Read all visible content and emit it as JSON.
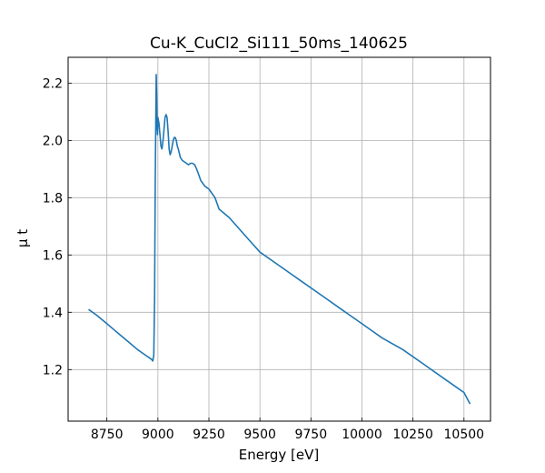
{
  "chart_data": {
    "type": "line",
    "title": "Cu-K_CuCl2_Si111_50ms_140625",
    "xlabel": "Energy [eV]",
    "ylabel": "μ t",
    "xlim": [
      8560,
      10630
    ],
    "ylim": [
      1.02,
      2.29
    ],
    "xticks": [
      8750,
      9000,
      9250,
      9500,
      9750,
      10000,
      10250,
      10500
    ],
    "yticks": [
      1.2,
      1.4,
      1.6,
      1.8,
      2.0,
      2.2
    ],
    "grid": true,
    "line_color": "#1f77b4",
    "series": [
      {
        "x": [
          8660,
          8700,
          8750,
          8800,
          8850,
          8900,
          8940,
          8960,
          8970,
          8975,
          8980,
          8984,
          8987,
          8990,
          8992,
          8994,
          8996,
          8998,
          9000,
          9005,
          9010,
          9015,
          9020,
          9025,
          9030,
          9035,
          9040,
          9045,
          9050,
          9055,
          9060,
          9065,
          9070,
          9075,
          9080,
          9085,
          9090,
          9095,
          9100,
          9110,
          9120,
          9130,
          9140,
          9150,
          9160,
          9170,
          9180,
          9190,
          9200,
          9210,
          9220,
          9230,
          9250,
          9280,
          9300,
          9350,
          9400,
          9450,
          9500,
          9600,
          9700,
          9800,
          9900,
          10000,
          10100,
          10200,
          10300,
          10400,
          10500,
          10530
        ],
        "y": [
          1.41,
          1.39,
          1.36,
          1.33,
          1.3,
          1.27,
          1.25,
          1.24,
          1.235,
          1.23,
          1.25,
          1.45,
          1.85,
          2.1,
          2.23,
          2.15,
          2.05,
          2.02,
          2.08,
          2.06,
          2.02,
          1.98,
          1.97,
          2.0,
          2.04,
          2.08,
          2.09,
          2.08,
          2.03,
          1.97,
          1.95,
          1.96,
          1.98,
          2.0,
          2.01,
          2.01,
          2.0,
          1.98,
          1.97,
          1.94,
          1.93,
          1.925,
          1.92,
          1.915,
          1.92,
          1.92,
          1.915,
          1.9,
          1.88,
          1.86,
          1.85,
          1.84,
          1.83,
          1.8,
          1.76,
          1.73,
          1.69,
          1.65,
          1.61,
          1.56,
          1.51,
          1.46,
          1.41,
          1.36,
          1.31,
          1.27,
          1.22,
          1.17,
          1.12,
          1.08
        ]
      }
    ]
  }
}
